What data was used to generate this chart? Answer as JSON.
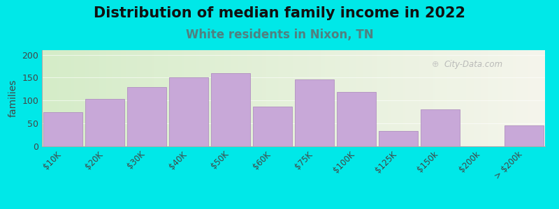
{
  "title": "Distribution of median family income in 2022",
  "subtitle": "White residents in Nixon, TN",
  "ylabel": "families",
  "categories": [
    "$10K",
    "$20K",
    "$30K",
    "$40K",
    "$50K",
    "$60K",
    "$75K",
    "$100K",
    "$125K",
    "$150k",
    "$200k",
    "> $200k"
  ],
  "values": [
    75,
    103,
    130,
    150,
    160,
    87,
    146,
    118,
    33,
    81,
    0,
    46
  ],
  "bar_color": "#c8a8d8",
  "bar_edge_color": "#b090c0",
  "ylim": [
    0,
    210
  ],
  "yticks": [
    0,
    50,
    100,
    150,
    200
  ],
  "background_outer": "#00e8e8",
  "bg_left_color": "#d5ecc8",
  "bg_right_color": "#f5f5ec",
  "title_fontsize": 15,
  "subtitle_fontsize": 12,
  "subtitle_color": "#508080",
  "ylabel_fontsize": 10,
  "watermark": "City-Data.com"
}
